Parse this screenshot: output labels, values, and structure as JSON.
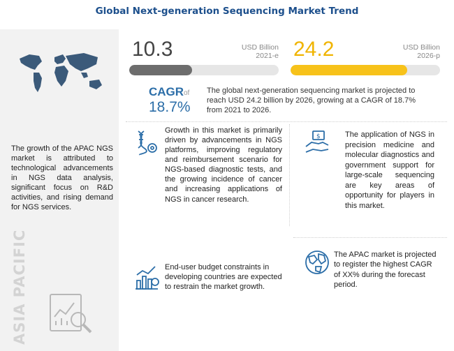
{
  "title": "Global Next-generation Sequencing Market Trend",
  "left_panel": {
    "text": "The growth of the APAC NGS market is attributed to technological advancements in NGS data analysis, significant focus on R&D activities, and rising demand for NGS services.",
    "region_label": "ASIA PACIFIC"
  },
  "chart_data": {
    "type": "bar",
    "categories": [
      "2021-e",
      "2026-p"
    ],
    "values": [
      10.3,
      24.2
    ],
    "unit": "USD Billion",
    "bars": [
      {
        "value_label": "10.3",
        "unit": "USD Billion",
        "year": "2021-e",
        "fill_fraction": 0.42,
        "color": "#6d6d6d"
      },
      {
        "value_label": "24.2",
        "unit": "USD Billion",
        "year": "2026-p",
        "fill_fraction": 0.78,
        "color": "#f7c21a"
      }
    ]
  },
  "cagr": {
    "label": "CAGR",
    "of": "of",
    "value": "18.7%",
    "text": "The global next-generation sequencing market is projected to reach USD 24.2 billion by 2026, growing at a CAGR of 18.7% from 2021 to 2026."
  },
  "driver": "Growth in this market is primarily driven by advancements in NGS platforms, improving regulatory and reimbursement scenario for NGS-based diagnostic tests, and the growing incidence of cancer and increasing applications of NGS in cancer research.",
  "opportunity": "The application of NGS in precision medicine and molecular diagnostics and government support for large-scale sequencing are key areas of opportunity for players in this market.",
  "restraint": "End-user budget constraints in developing countries are expected to restrain the market growth.",
  "apac_note": "The APAC market is projected to register the highest CAGR of XX% during the forecast period.",
  "colors": {
    "title": "#1c4f8c",
    "accent_blue": "#2c6ea8",
    "accent_yellow": "#f7c21a",
    "gray_bar": "#6d6d6d"
  },
  "icons": [
    "world-map-icon",
    "dna-gear-icon",
    "hands-money-icon",
    "budget-chart-icon",
    "globe-icon",
    "analysis-magnifier-icon"
  ]
}
